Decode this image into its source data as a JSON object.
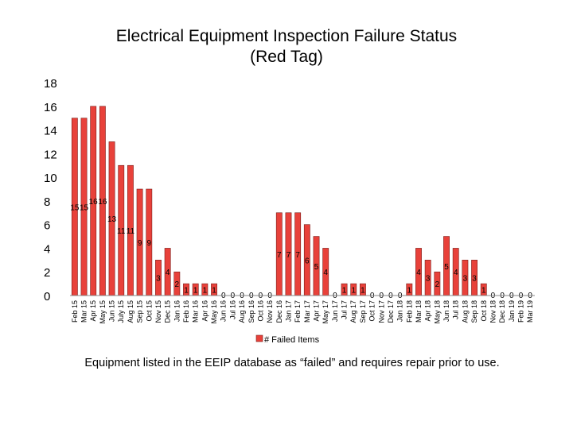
{
  "slide": {
    "title_line1": "Electrical Equipment Inspection Failure Status",
    "title_line2": "(Red Tag)",
    "caption": "Equipment listed in the EEIP database as “failed” and requires repair prior to use."
  },
  "chart_data": {
    "type": "bar",
    "title": "",
    "xlabel": "",
    "ylabel": "",
    "ylim": [
      0,
      18
    ],
    "yticks": [
      0,
      2,
      4,
      6,
      8,
      10,
      12,
      14,
      16,
      18
    ],
    "grid": false,
    "legend_position": "bottom",
    "bar_color": "#e8413a",
    "bar_edge_color": "#7a1e1a",
    "categories": [
      "Feb 15",
      "Mar 15",
      "Apr 15",
      "May 15",
      "Jun 15",
      "July 15",
      "Aug 15",
      "Sep 15",
      "Oct 15",
      "Nov 15",
      "Dec 15",
      "Jan 16",
      "Feb 16",
      "Mar 16",
      "Apr 16",
      "May 16",
      "Jun 16",
      "Jul 16",
      "Aug 16",
      "Sep 16",
      "Oct 16",
      "Nov 16",
      "Dec 16",
      "Jan 17",
      "Feb 17",
      "Mar 17",
      "Apr 17",
      "May 17",
      "Jun 17",
      "Jul 17",
      "Aug 17",
      "Sep 17",
      "Oct 17",
      "Nov 17",
      "Dec 17",
      "Jan 18",
      "Feb 18",
      "Mar 18",
      "Apr 18",
      "May 18",
      "Jun 18",
      "Jul 18",
      "Aug 18",
      "Sep 18",
      "Oct 18",
      "Nov 18",
      "Dec 18",
      "Jan 19",
      "Feb 19",
      "Mar 19"
    ],
    "series": [
      {
        "name": "# Failed Items",
        "values": [
          15,
          15,
          16,
          16,
          13,
          11,
          11,
          9,
          9,
          3,
          4,
          2,
          1,
          1,
          1,
          1,
          0,
          0,
          0,
          0,
          0,
          0,
          7,
          7,
          7,
          6,
          5,
          4,
          0,
          1,
          1,
          1,
          0,
          0,
          0,
          0,
          1,
          4,
          3,
          2,
          5,
          4,
          3,
          3,
          1,
          0,
          0,
          0,
          0,
          0
        ]
      }
    ]
  }
}
